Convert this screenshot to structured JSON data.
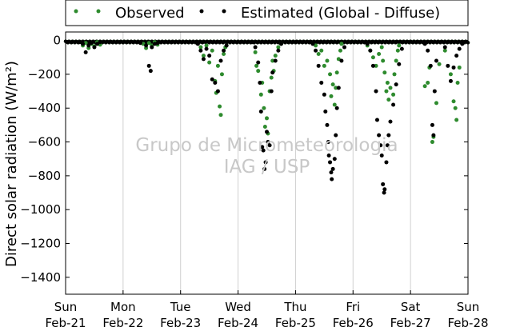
{
  "chart_data": {
    "type": "scatter",
    "ylabel": "Direct solar radiation (W/m²)",
    "ylim": [
      -1500,
      50
    ],
    "y_ticks": [
      0,
      -200,
      -400,
      -600,
      -800,
      -1000,
      -1200,
      -1400
    ],
    "x_range_days": [
      0,
      7
    ],
    "x_ticks": [
      {
        "weekday": "Sun",
        "date": "Feb-21"
      },
      {
        "weekday": "Mon",
        "date": "Feb-22"
      },
      {
        "weekday": "Tue",
        "date": "Feb-23"
      },
      {
        "weekday": "Wed",
        "date": "Feb-24"
      },
      {
        "weekday": "Thu",
        "date": "Feb-25"
      },
      {
        "weekday": "Fri",
        "date": "Feb-26"
      },
      {
        "weekday": "Sat",
        "date": "Feb-27"
      },
      {
        "weekday": "Sun",
        "date": "Feb-28"
      }
    ],
    "grid": "vertical",
    "legend": "top, outside",
    "watermark": [
      "Grupo de Micrometeorologia",
      "IAG / USP"
    ],
    "series": [
      {
        "name": "Observed",
        "color": "#2e8b2e",
        "points": [
          [
            0.3,
            -30
          ],
          [
            0.35,
            -15
          ],
          [
            0.4,
            -45
          ],
          [
            0.45,
            -20
          ],
          [
            0.5,
            -35
          ],
          [
            0.55,
            -10
          ],
          [
            0.6,
            -25
          ],
          [
            1.35,
            -20
          ],
          [
            1.4,
            -45
          ],
          [
            1.45,
            -15
          ],
          [
            1.5,
            -30
          ],
          [
            1.55,
            -10
          ],
          [
            1.6,
            -25
          ],
          [
            2.35,
            -40
          ],
          [
            2.4,
            -90
          ],
          [
            2.45,
            -30
          ],
          [
            2.5,
            -130
          ],
          [
            2.55,
            -60
          ],
          [
            2.6,
            -240
          ],
          [
            2.62,
            -310
          ],
          [
            2.65,
            -150
          ],
          [
            2.68,
            -390
          ],
          [
            2.7,
            -440
          ],
          [
            2.72,
            -200
          ],
          [
            2.75,
            -80
          ],
          [
            2.78,
            -40
          ],
          [
            3.3,
            -70
          ],
          [
            3.32,
            -150
          ],
          [
            3.35,
            -180
          ],
          [
            3.4,
            -320
          ],
          [
            3.42,
            -250
          ],
          [
            3.45,
            -400
          ],
          [
            3.47,
            -510
          ],
          [
            3.5,
            -460
          ],
          [
            3.52,
            -550
          ],
          [
            3.55,
            -300
          ],
          [
            3.58,
            -220
          ],
          [
            3.6,
            -120
          ],
          [
            3.62,
            -180
          ],
          [
            3.65,
            -90
          ],
          [
            3.7,
            -40
          ],
          [
            3.75,
            -20
          ],
          [
            4.35,
            -30
          ],
          [
            4.4,
            -80
          ],
          [
            4.45,
            -60
          ],
          [
            4.5,
            -150
          ],
          [
            4.55,
            -120
          ],
          [
            4.6,
            -200
          ],
          [
            4.62,
            -330
          ],
          [
            4.65,
            -260
          ],
          [
            4.68,
            -380
          ],
          [
            4.7,
            -280
          ],
          [
            4.72,
            -190
          ],
          [
            4.75,
            -110
          ],
          [
            4.78,
            -60
          ],
          [
            4.8,
            -20
          ],
          [
            5.25,
            -30
          ],
          [
            5.3,
            -60
          ],
          [
            5.35,
            -100
          ],
          [
            5.4,
            -150
          ],
          [
            5.45,
            -80
          ],
          [
            5.5,
            -40
          ],
          [
            5.52,
            -120
          ],
          [
            5.55,
            -190
          ],
          [
            5.58,
            -300
          ],
          [
            5.6,
            -250
          ],
          [
            5.62,
            -350
          ],
          [
            5.65,
            -280
          ],
          [
            5.7,
            -320
          ],
          [
            5.72,
            -200
          ],
          [
            5.75,
            -120
          ],
          [
            5.78,
            -60
          ],
          [
            5.8,
            -30
          ],
          [
            6.25,
            -270
          ],
          [
            6.3,
            -250
          ],
          [
            6.33,
            -160
          ],
          [
            6.38,
            -600
          ],
          [
            6.4,
            -570
          ],
          [
            6.45,
            -370
          ],
          [
            6.5,
            -140
          ],
          [
            6.6,
            -60
          ],
          [
            6.7,
            -200
          ],
          [
            6.75,
            -360
          ],
          [
            6.78,
            -400
          ],
          [
            6.8,
            -470
          ],
          [
            6.82,
            -250
          ],
          [
            6.85,
            -160
          ]
        ]
      },
      {
        "name": "Estimated (Global - Diffuse)",
        "color": "#000000",
        "points": [
          [
            0.25,
            -10
          ],
          [
            0.3,
            -20
          ],
          [
            0.35,
            -70
          ],
          [
            0.4,
            -30
          ],
          [
            0.45,
            -15
          ],
          [
            0.5,
            -40
          ],
          [
            0.55,
            -20
          ],
          [
            0.6,
            -10
          ],
          [
            1.3,
            -15
          ],
          [
            1.4,
            -30
          ],
          [
            1.45,
            -150
          ],
          [
            1.48,
            -180
          ],
          [
            1.5,
            -40
          ],
          [
            1.55,
            -20
          ],
          [
            1.6,
            -15
          ],
          [
            2.3,
            -20
          ],
          [
            2.35,
            -60
          ],
          [
            2.4,
            -110
          ],
          [
            2.45,
            -50
          ],
          [
            2.5,
            -90
          ],
          [
            2.55,
            -230
          ],
          [
            2.6,
            -250
          ],
          [
            2.65,
            -300
          ],
          [
            2.7,
            -120
          ],
          [
            2.75,
            -60
          ],
          [
            2.8,
            -30
          ],
          [
            3.25,
            -10
          ],
          [
            3.3,
            -40
          ],
          [
            3.35,
            -130
          ],
          [
            3.38,
            -250
          ],
          [
            3.4,
            -420
          ],
          [
            3.42,
            -630
          ],
          [
            3.44,
            -650
          ],
          [
            3.46,
            -760
          ],
          [
            3.48,
            -720
          ],
          [
            3.5,
            -540
          ],
          [
            3.52,
            -600
          ],
          [
            3.55,
            -620
          ],
          [
            3.58,
            -300
          ],
          [
            3.6,
            -190
          ],
          [
            3.65,
            -120
          ],
          [
            3.7,
            -60
          ],
          [
            3.75,
            -20
          ],
          [
            4.3,
            -20
          ],
          [
            4.35,
            -60
          ],
          [
            4.4,
            -150
          ],
          [
            4.45,
            -250
          ],
          [
            4.5,
            -320
          ],
          [
            4.52,
            -420
          ],
          [
            4.55,
            -500
          ],
          [
            4.57,
            -600
          ],
          [
            4.58,
            -680
          ],
          [
            4.6,
            -720
          ],
          [
            4.62,
            -780
          ],
          [
            4.63,
            -820
          ],
          [
            4.65,
            -760
          ],
          [
            4.68,
            -700
          ],
          [
            4.7,
            -560
          ],
          [
            4.72,
            -400
          ],
          [
            4.75,
            -280
          ],
          [
            4.8,
            -120
          ],
          [
            4.85,
            -40
          ],
          [
            5.25,
            -20
          ],
          [
            5.3,
            -60
          ],
          [
            5.35,
            -150
          ],
          [
            5.4,
            -300
          ],
          [
            5.42,
            -470
          ],
          [
            5.45,
            -560
          ],
          [
            5.48,
            -620
          ],
          [
            5.5,
            -680
          ],
          [
            5.52,
            -850
          ],
          [
            5.54,
            -900
          ],
          [
            5.55,
            -880
          ],
          [
            5.58,
            -720
          ],
          [
            5.6,
            -620
          ],
          [
            5.62,
            -560
          ],
          [
            5.65,
            -480
          ],
          [
            5.7,
            -380
          ],
          [
            5.75,
            -260
          ],
          [
            5.8,
            -140
          ],
          [
            5.85,
            -50
          ],
          [
            6.25,
            -20
          ],
          [
            6.3,
            -60
          ],
          [
            6.35,
            -150
          ],
          [
            6.38,
            -500
          ],
          [
            6.4,
            -560
          ],
          [
            6.42,
            -300
          ],
          [
            6.45,
            -120
          ],
          [
            6.6,
            -40
          ],
          [
            6.65,
            -150
          ],
          [
            6.7,
            -240
          ],
          [
            6.75,
            -160
          ],
          [
            6.8,
            -90
          ],
          [
            6.85,
            -50
          ],
          [
            6.9,
            -20
          ]
        ]
      }
    ]
  }
}
